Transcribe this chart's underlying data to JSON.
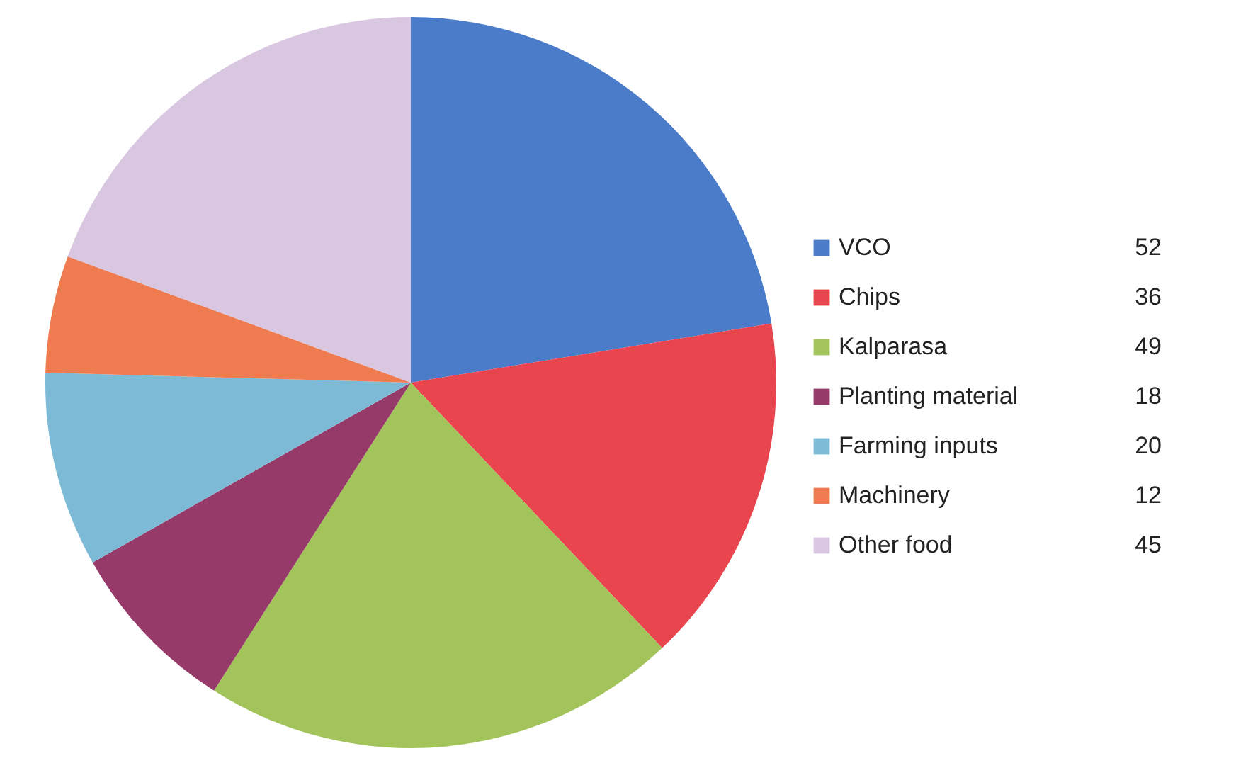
{
  "chart_data": {
    "type": "pie",
    "categories": [
      "VCO",
      "Chips",
      "Kalparasa",
      "Planting material",
      "Farming inputs",
      "Machinery",
      "Other food"
    ],
    "values": [
      52,
      36,
      49,
      18,
      20,
      12,
      45
    ],
    "colors": [
      "#4a7cc9",
      "#e8454f",
      "#a3c45a",
      "#963a6a",
      "#7cbad6",
      "#ef7b50",
      "#d9c6e0"
    ],
    "legend": "right",
    "data_labels": true
  }
}
